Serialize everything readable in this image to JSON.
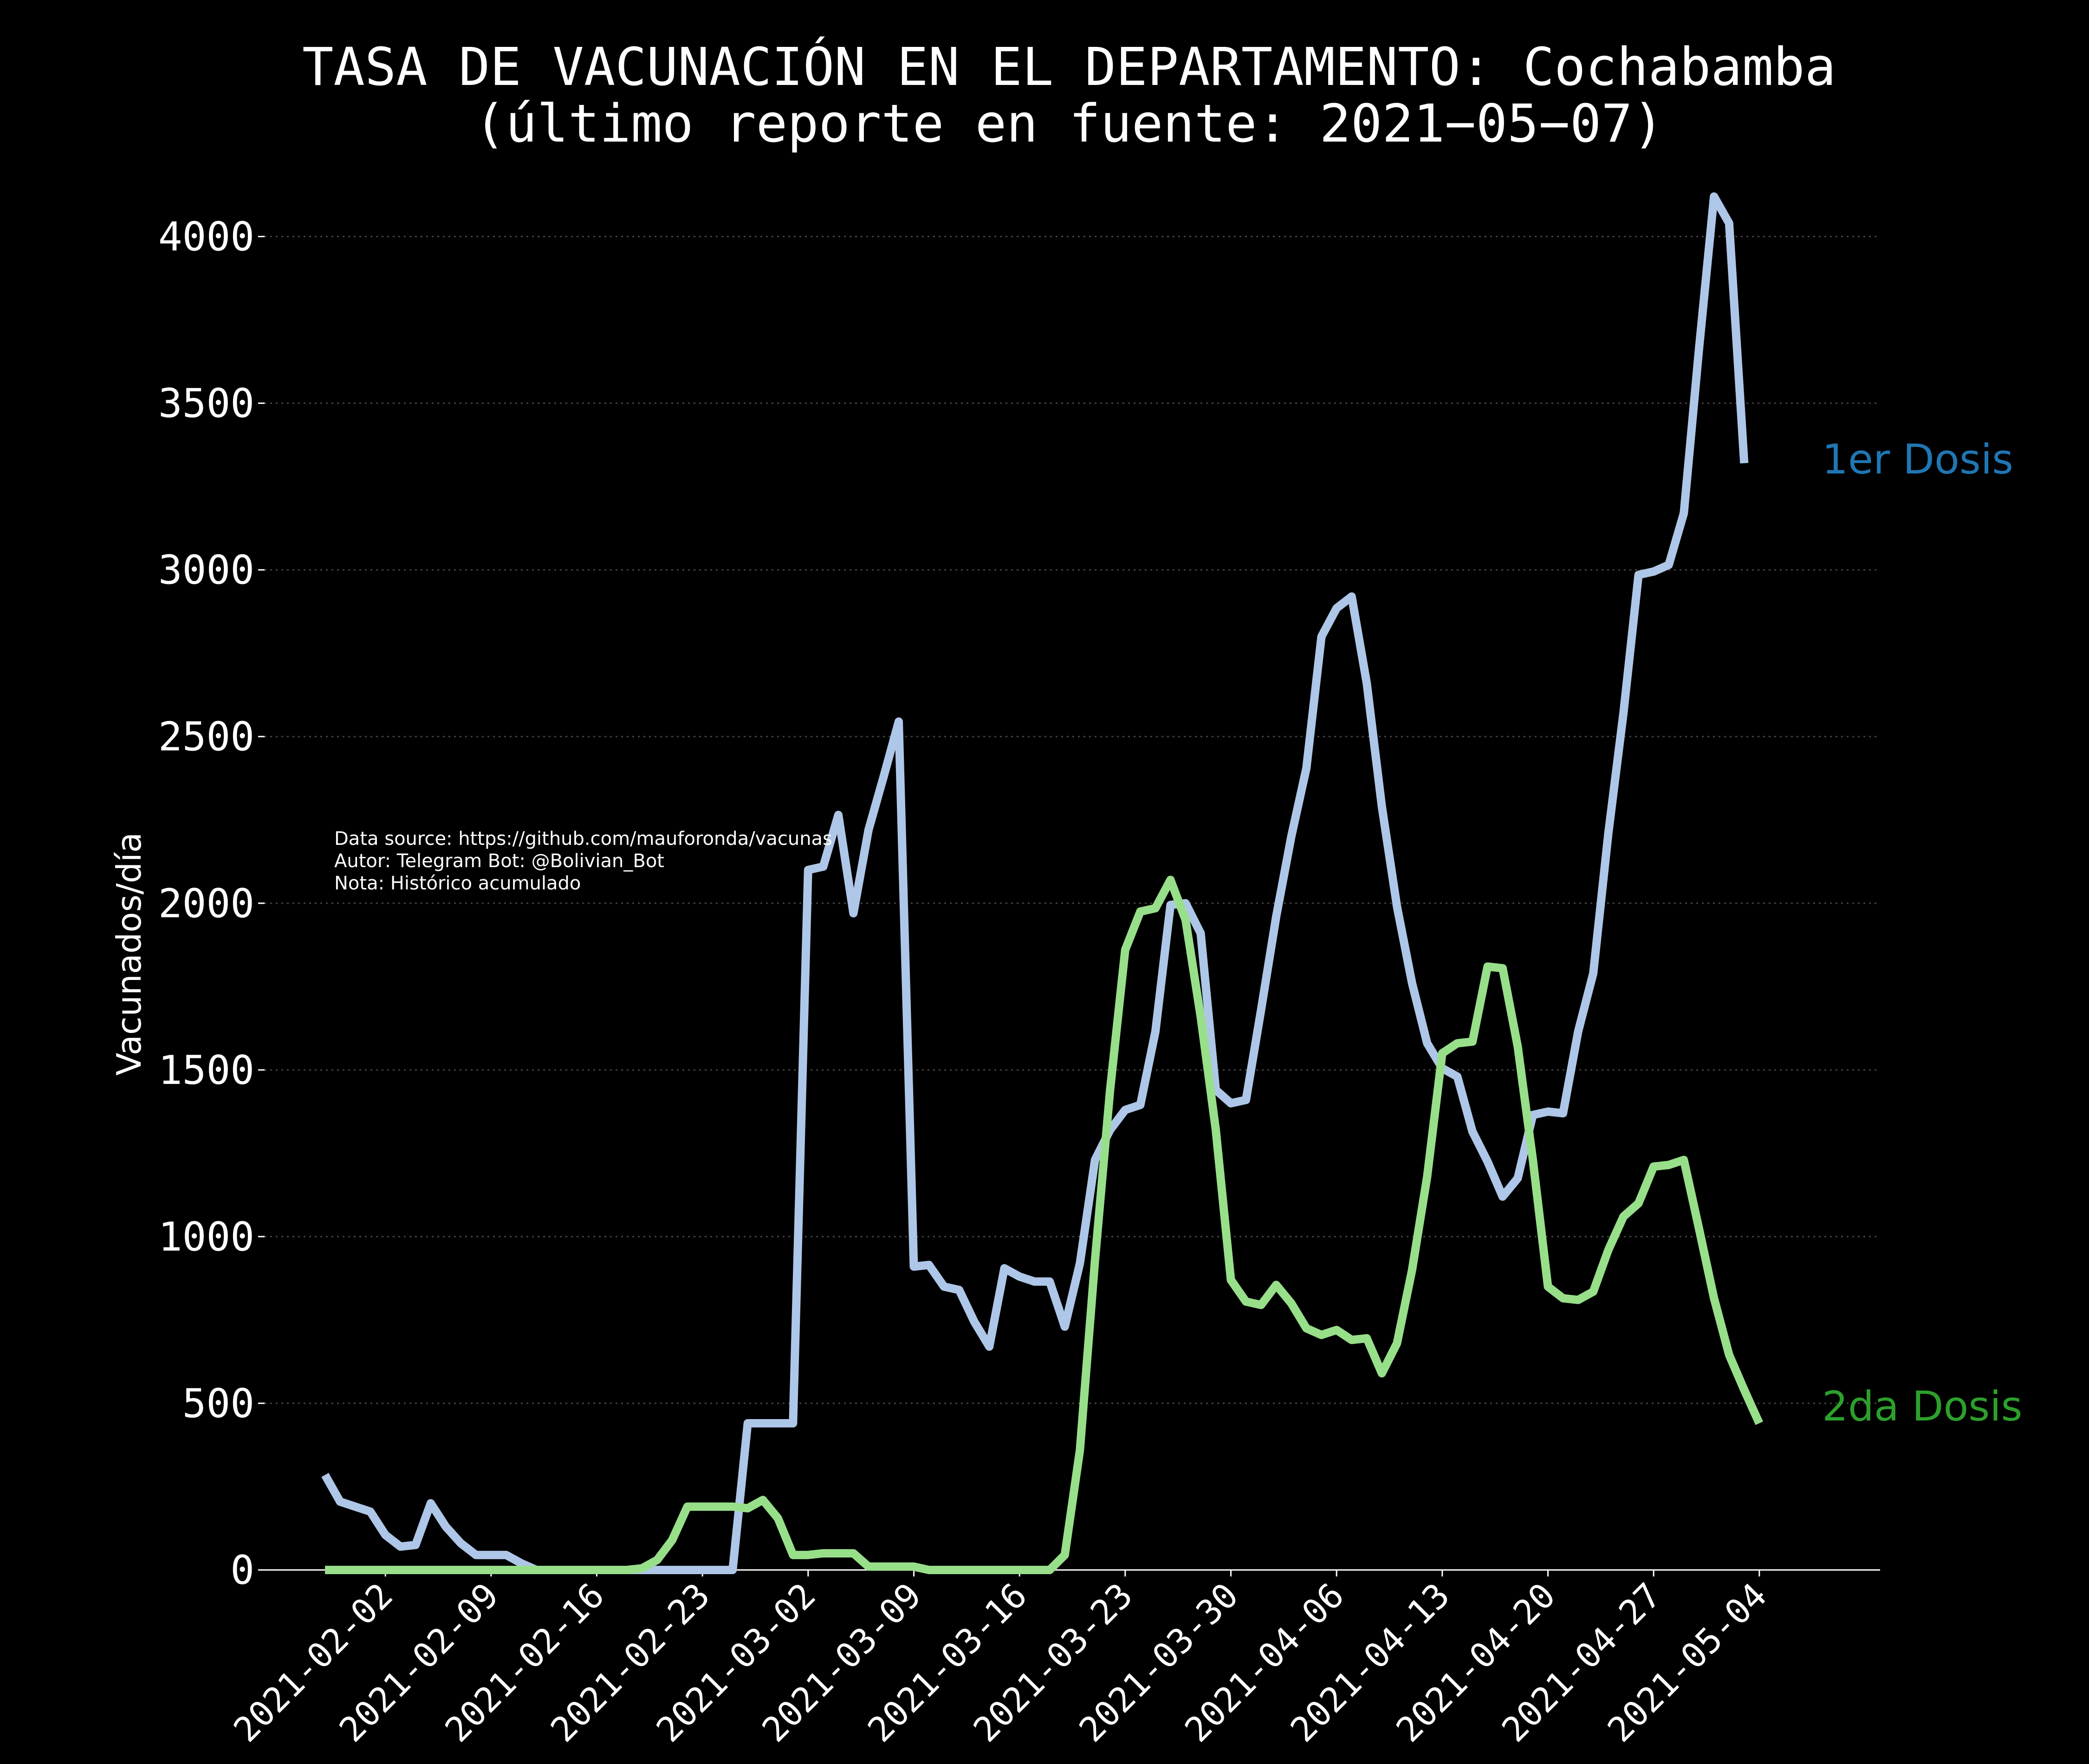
{
  "title_line1": "TASA DE VACUNACIÓN EN EL DEPARTAMENTO: Cochabamba",
  "title_line2": "(último reporte en fuente: 2021−05−07)",
  "source_note": [
    "Data source: https://github.com/mauforonda/vacunas",
    "Autor: Telegram Bot: @Bolivian_Bot",
    "Nota: Histórico acumulado"
  ],
  "colors": {
    "background": "#000000",
    "series1": "#aec7e8",
    "series2": "#98df8a",
    "label1": "#1f77b4",
    "label2": "#2ca02c",
    "grid": "#444444"
  },
  "chart_data": {
    "type": "line",
    "ylabel": "Vacunados/día",
    "ylim": [
      0,
      4250
    ],
    "xlim": [
      "2021-01-25",
      "2021-05-12"
    ],
    "grid": "horizontal dotted",
    "yticks": [
      0,
      500,
      1000,
      1500,
      2000,
      2500,
      3000,
      3500,
      4000
    ],
    "xticks": [
      "2021-02-02",
      "2021-02-09",
      "2021-02-16",
      "2021-02-23",
      "2021-03-02",
      "2021-03-09",
      "2021-03-16",
      "2021-03-23",
      "2021-03-30",
      "2021-04-06",
      "2021-04-13",
      "2021-04-20",
      "2021-04-27",
      "2021-05-04"
    ],
    "series": [
      {
        "name": "1er Dosis",
        "points": [
          [
            "2021-01-29",
            285
          ],
          [
            "2021-01-30",
            205
          ],
          [
            "2021-01-31",
            190
          ],
          [
            "2021-02-01",
            175
          ],
          [
            "2021-02-02",
            105
          ],
          [
            "2021-02-03",
            70
          ],
          [
            "2021-02-04",
            75
          ],
          [
            "2021-02-05",
            200
          ],
          [
            "2021-02-06",
            130
          ],
          [
            "2021-02-07",
            80
          ],
          [
            "2021-02-08",
            45
          ],
          [
            "2021-02-09",
            45
          ],
          [
            "2021-02-10",
            45
          ],
          [
            "2021-02-11",
            20
          ],
          [
            "2021-02-12",
            0
          ],
          [
            "2021-02-13",
            0
          ],
          [
            "2021-02-14",
            0
          ],
          [
            "2021-02-15",
            0
          ],
          [
            "2021-02-16",
            0
          ],
          [
            "2021-02-17",
            0
          ],
          [
            "2021-02-18",
            0
          ],
          [
            "2021-02-19",
            0
          ],
          [
            "2021-02-20",
            0
          ],
          [
            "2021-02-21",
            0
          ],
          [
            "2021-02-22",
            0
          ],
          [
            "2021-02-23",
            0
          ],
          [
            "2021-02-24",
            0
          ],
          [
            "2021-02-25",
            0
          ],
          [
            "2021-02-26",
            440
          ],
          [
            "2021-02-27",
            440
          ],
          [
            "2021-02-28",
            440
          ],
          [
            "2021-03-01",
            440
          ],
          [
            "2021-03-02",
            2100
          ],
          [
            "2021-03-03",
            2110
          ],
          [
            "2021-03-04",
            2265
          ],
          [
            "2021-03-05",
            1970
          ],
          [
            "2021-03-06",
            2220
          ],
          [
            "2021-03-07",
            2380
          ],
          [
            "2021-03-08",
            2545
          ],
          [
            "2021-03-09",
            910
          ],
          [
            "2021-03-10",
            915
          ],
          [
            "2021-03-11",
            850
          ],
          [
            "2021-03-12",
            840
          ],
          [
            "2021-03-13",
            745
          ],
          [
            "2021-03-14",
            670
          ],
          [
            "2021-03-15",
            905
          ],
          [
            "2021-03-16",
            880
          ],
          [
            "2021-03-17",
            865
          ],
          [
            "2021-03-18",
            865
          ],
          [
            "2021-03-19",
            730
          ],
          [
            "2021-03-20",
            920
          ],
          [
            "2021-03-21",
            1230
          ],
          [
            "2021-03-22",
            1320
          ],
          [
            "2021-03-23",
            1380
          ],
          [
            "2021-03-24",
            1395
          ],
          [
            "2021-03-25",
            1615
          ],
          [
            "2021-03-26",
            1995
          ],
          [
            "2021-03-27",
            2000
          ],
          [
            "2021-03-28",
            1910
          ],
          [
            "2021-03-29",
            1440
          ],
          [
            "2021-03-30",
            1400
          ],
          [
            "2021-03-31",
            1410
          ],
          [
            "2021-04-01",
            1680
          ],
          [
            "2021-04-02",
            1960
          ],
          [
            "2021-04-03",
            2200
          ],
          [
            "2021-04-04",
            2405
          ],
          [
            "2021-04-05",
            2800
          ],
          [
            "2021-04-06",
            2885
          ],
          [
            "2021-04-07",
            2920
          ],
          [
            "2021-04-08",
            2660
          ],
          [
            "2021-04-09",
            2290
          ],
          [
            "2021-04-10",
            1990
          ],
          [
            "2021-04-11",
            1760
          ],
          [
            "2021-04-12",
            1580
          ],
          [
            "2021-04-13",
            1505
          ],
          [
            "2021-04-14",
            1480
          ],
          [
            "2021-04-15",
            1315
          ],
          [
            "2021-04-16",
            1225
          ],
          [
            "2021-04-17",
            1120
          ],
          [
            "2021-04-18",
            1175
          ],
          [
            "2021-04-19",
            1365
          ],
          [
            "2021-04-20",
            1375
          ],
          [
            "2021-04-21",
            1370
          ],
          [
            "2021-04-22",
            1615
          ],
          [
            "2021-04-23",
            1790
          ],
          [
            "2021-04-24",
            2210
          ],
          [
            "2021-04-25",
            2570
          ],
          [
            "2021-04-26",
            2985
          ],
          [
            "2021-04-27",
            2995
          ],
          [
            "2021-04-28",
            3015
          ],
          [
            "2021-04-29",
            3170
          ],
          [
            "2021-04-30",
            3660
          ],
          [
            "2021-05-01",
            4120
          ],
          [
            "2021-05-02",
            4040
          ],
          [
            "2021-05-03",
            3320
          ]
        ]
      },
      {
        "name": "2da Dosis",
        "points": [
          [
            "2021-01-29",
            0
          ],
          [
            "2021-01-30",
            0
          ],
          [
            "2021-01-31",
            0
          ],
          [
            "2021-02-01",
            0
          ],
          [
            "2021-02-02",
            0
          ],
          [
            "2021-02-03",
            0
          ],
          [
            "2021-02-04",
            0
          ],
          [
            "2021-02-05",
            0
          ],
          [
            "2021-02-06",
            0
          ],
          [
            "2021-02-07",
            0
          ],
          [
            "2021-02-08",
            0
          ],
          [
            "2021-02-09",
            0
          ],
          [
            "2021-02-10",
            0
          ],
          [
            "2021-02-11",
            0
          ],
          [
            "2021-02-12",
            0
          ],
          [
            "2021-02-13",
            0
          ],
          [
            "2021-02-14",
            0
          ],
          [
            "2021-02-15",
            0
          ],
          [
            "2021-02-16",
            0
          ],
          [
            "2021-02-17",
            0
          ],
          [
            "2021-02-18",
            0
          ],
          [
            "2021-02-19",
            5
          ],
          [
            "2021-02-20",
            30
          ],
          [
            "2021-02-21",
            90
          ],
          [
            "2021-02-22",
            190
          ],
          [
            "2021-02-23",
            190
          ],
          [
            "2021-02-24",
            190
          ],
          [
            "2021-02-25",
            190
          ],
          [
            "2021-02-26",
            185
          ],
          [
            "2021-02-27",
            210
          ],
          [
            "2021-02-28",
            155
          ],
          [
            "2021-03-01",
            45
          ],
          [
            "2021-03-02",
            45
          ],
          [
            "2021-03-03",
            50
          ],
          [
            "2021-03-04",
            50
          ],
          [
            "2021-03-05",
            50
          ],
          [
            "2021-03-06",
            10
          ],
          [
            "2021-03-07",
            10
          ],
          [
            "2021-03-08",
            10
          ],
          [
            "2021-03-09",
            10
          ],
          [
            "2021-03-10",
            0
          ],
          [
            "2021-03-11",
            0
          ],
          [
            "2021-03-12",
            0
          ],
          [
            "2021-03-13",
            0
          ],
          [
            "2021-03-14",
            0
          ],
          [
            "2021-03-15",
            0
          ],
          [
            "2021-03-16",
            0
          ],
          [
            "2021-03-17",
            0
          ],
          [
            "2021-03-18",
            0
          ],
          [
            "2021-03-19",
            45
          ],
          [
            "2021-03-20",
            360
          ],
          [
            "2021-03-21",
            930
          ],
          [
            "2021-03-22",
            1440
          ],
          [
            "2021-03-23",
            1860
          ],
          [
            "2021-03-24",
            1975
          ],
          [
            "2021-03-25",
            1985
          ],
          [
            "2021-03-26",
            2070
          ],
          [
            "2021-03-27",
            1950
          ],
          [
            "2021-03-28",
            1660
          ],
          [
            "2021-03-29",
            1320
          ],
          [
            "2021-03-30",
            870
          ],
          [
            "2021-03-31",
            805
          ],
          [
            "2021-04-01",
            795
          ],
          [
            "2021-04-02",
            855
          ],
          [
            "2021-04-03",
            800
          ],
          [
            "2021-04-04",
            725
          ],
          [
            "2021-04-05",
            705
          ],
          [
            "2021-04-06",
            720
          ],
          [
            "2021-04-07",
            690
          ],
          [
            "2021-04-08",
            695
          ],
          [
            "2021-04-09",
            590
          ],
          [
            "2021-04-10",
            680
          ],
          [
            "2021-04-11",
            900
          ],
          [
            "2021-04-12",
            1180
          ],
          [
            "2021-04-13",
            1550
          ],
          [
            "2021-04-14",
            1580
          ],
          [
            "2021-04-15",
            1585
          ],
          [
            "2021-04-16",
            1810
          ],
          [
            "2021-04-17",
            1805
          ],
          [
            "2021-04-18",
            1570
          ],
          [
            "2021-04-19",
            1230
          ],
          [
            "2021-04-20",
            850
          ],
          [
            "2021-04-21",
            815
          ],
          [
            "2021-04-22",
            810
          ],
          [
            "2021-04-23",
            835
          ],
          [
            "2021-04-24",
            960
          ],
          [
            "2021-04-25",
            1060
          ],
          [
            "2021-04-26",
            1100
          ],
          [
            "2021-04-27",
            1210
          ],
          [
            "2021-04-28",
            1215
          ],
          [
            "2021-04-29",
            1230
          ],
          [
            "2021-04-30",
            1025
          ],
          [
            "2021-05-01",
            815
          ],
          [
            "2021-05-02",
            645
          ],
          [
            "2021-05-03",
            540
          ],
          [
            "2021-05-04",
            440
          ]
        ]
      }
    ]
  }
}
